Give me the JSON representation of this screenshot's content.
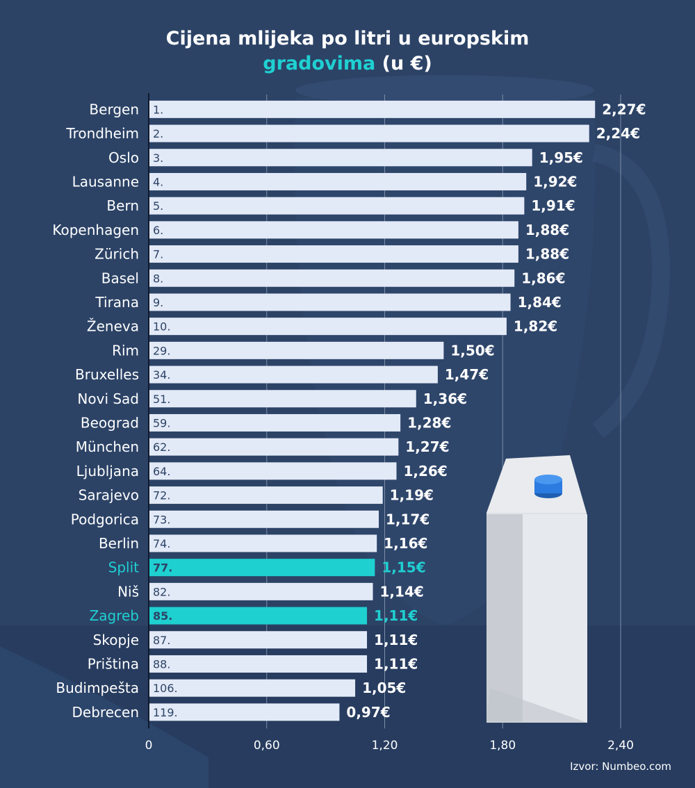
{
  "title_line1": "Cijena mlijeka po litri u europskim",
  "title_line2_accent": "gradovima",
  "title_line2_rest": " (u €)",
  "source": "Izvor: Numbeo.com",
  "colors": {
    "background": "#2c4366",
    "bar": "#e3eaf7",
    "highlight": "#1fd0d1",
    "text": "#ffffff",
    "rank_text": "#2c4366",
    "grid": "#7d8ea8"
  },
  "chart_data": {
    "type": "bar",
    "orientation": "horizontal",
    "title": "Cijena mlijeka po litri u europskim gradovima (u €)",
    "categories": [
      "Bergen",
      "Trondheim",
      "Oslo",
      "Lausanne",
      "Bern",
      "Kopenhagen",
      "Zürich",
      "Basel",
      "Tirana",
      "Ženeva",
      "Rim",
      "Bruxelles",
      "Novi Sad",
      "Beograd",
      "München",
      "Ljubljana",
      "Sarajevo",
      "Podgorica",
      "Berlin",
      "Split",
      "Niš",
      "Zagreb",
      "Skopje",
      "Priština",
      "Budimpešta",
      "Debrecen"
    ],
    "ranks": [
      "1.",
      "2.",
      "3.",
      "4.",
      "5.",
      "6.",
      "7.",
      "8.",
      "9.",
      "10.",
      "29.",
      "34.",
      "51.",
      "59.",
      "62.",
      "64.",
      "72.",
      "73.",
      "74.",
      "77.",
      "82.",
      "85.",
      "87.",
      "88.",
      "106.",
      "119."
    ],
    "values": [
      2.27,
      2.24,
      1.95,
      1.92,
      1.91,
      1.88,
      1.88,
      1.86,
      1.84,
      1.82,
      1.5,
      1.47,
      1.36,
      1.28,
      1.27,
      1.26,
      1.19,
      1.17,
      1.16,
      1.15,
      1.14,
      1.11,
      1.11,
      1.11,
      1.05,
      0.97
    ],
    "value_labels": [
      "2,27€",
      "2,24€",
      "1,95€",
      "1,92€",
      "1,91€",
      "1,88€",
      "1,88€",
      "1,86€",
      "1,84€",
      "1,82€",
      "1,50€",
      "1,47€",
      "1,36€",
      "1,28€",
      "1,27€",
      "1,26€",
      "1,19€",
      "1,17€",
      "1,16€",
      "1,15€",
      "1,14€",
      "1,11€",
      "1,11€",
      "1,11€",
      "1,05€",
      "0,97€"
    ],
    "highlighted": [
      "Split",
      "Zagreb"
    ],
    "x_ticks": [
      0,
      0.6,
      1.2,
      1.8,
      2.4
    ],
    "x_tick_labels": [
      "0",
      "0,60",
      "1,20",
      "1,80",
      "2,40"
    ],
    "xlim": [
      0,
      2.4
    ],
    "grid": true
  }
}
